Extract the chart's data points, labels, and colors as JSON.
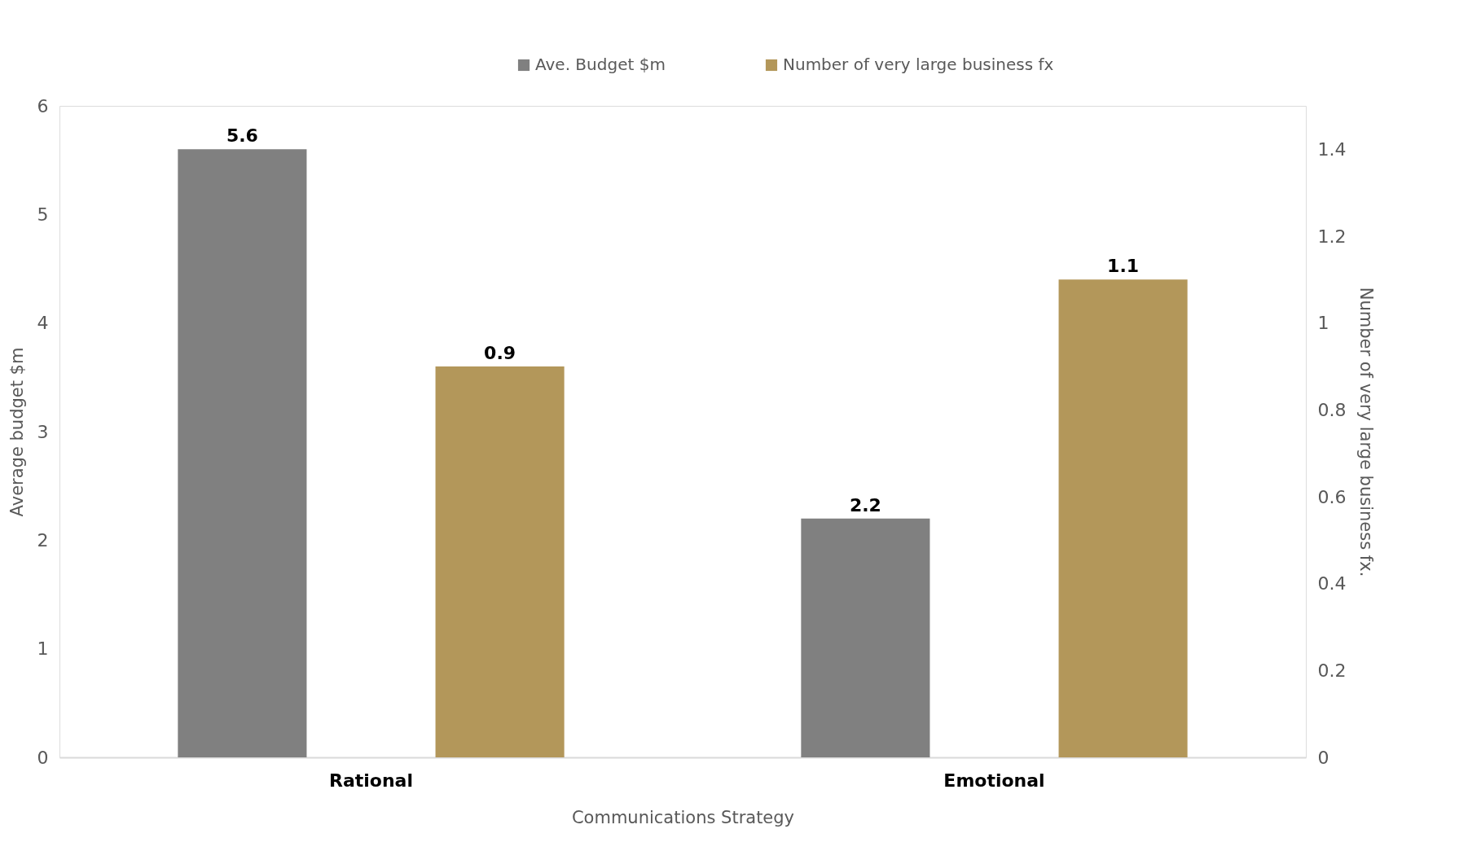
{
  "chart_data": {
    "type": "bar",
    "xlabel": "Communications Strategy",
    "ylabel": "Average budget $m",
    "y2label": "Number of very large business fx.",
    "categories": [
      "Rational",
      "Emotional"
    ],
    "series": [
      {
        "name": "Ave. Budget $m",
        "color": "#808080",
        "values": [
          5.6,
          2.2
        ]
      },
      {
        "name": "Number of very large business fx",
        "color": "#b3975a",
        "values": [
          0.9,
          1.1
        ],
        "axis": "y2"
      }
    ],
    "ylim": [
      0,
      6
    ],
    "yticks": [
      0,
      1,
      2,
      3,
      4,
      5,
      6
    ],
    "y2lim": [
      0,
      1.5
    ],
    "y2ticks": [
      0,
      0.2,
      0.4,
      0.6,
      0.8,
      1,
      1.2,
      1.4
    ],
    "data_labels": true,
    "grid": false,
    "legend": "top"
  }
}
